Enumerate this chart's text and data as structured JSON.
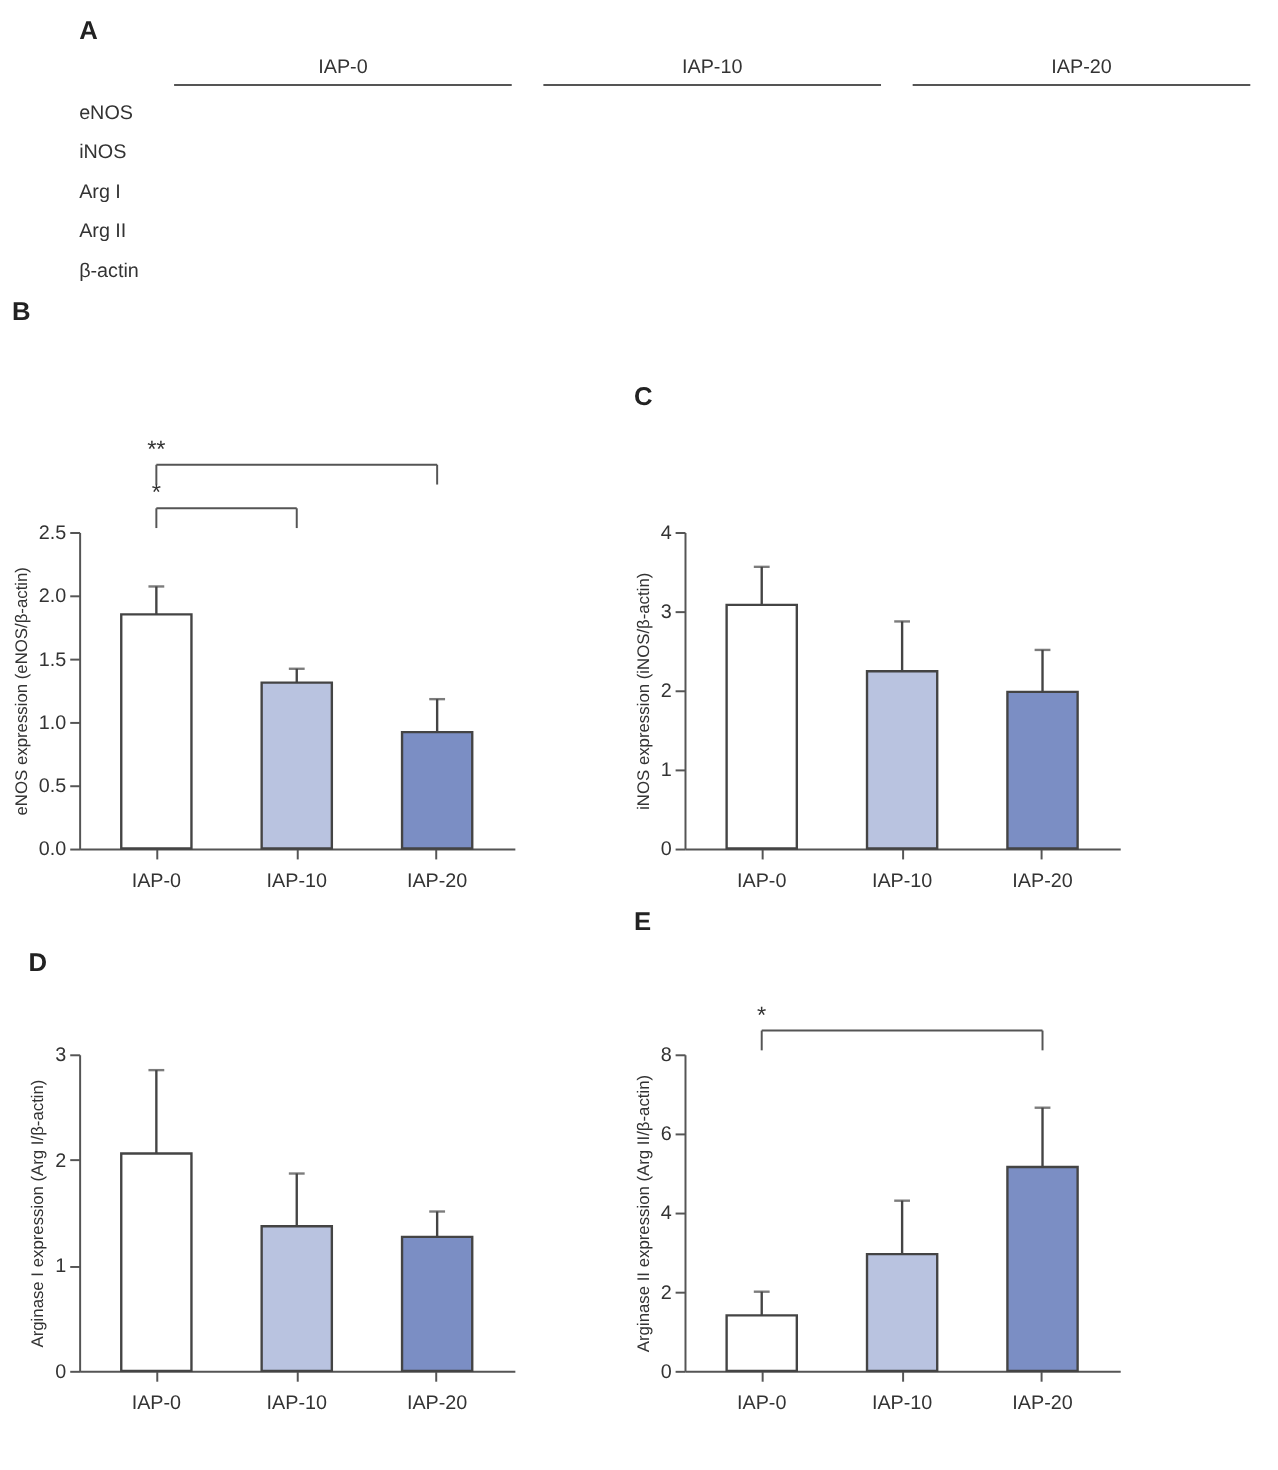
{
  "chart_data": [
    {
      "type": "other",
      "title": "A",
      "categories": [
        "IAP-0",
        "IAP-10",
        "IAP-20"
      ],
      "annotations": [
        "eNOS",
        "iNOS",
        "Arg I",
        "Arg II",
        "β-actin"
      ]
    },
    {
      "type": "bar",
      "title": "B",
      "categories": [
        "IAP-0",
        "IAP-10",
        "IAP-20"
      ],
      "values": [
        1.85,
        1.31,
        0.92
      ],
      "colors": [
        "#ffffff",
        "#b9c3e0",
        "#7b8ec4"
      ],
      "errors": [
        [
          1.85,
          2.07
        ],
        [
          1.31,
          1.42
        ],
        [
          0.92,
          1.18
        ]
      ],
      "ylabel": "eNOS expression (eNOS/β-actin)",
      "ylim": [
        0,
        2.5
      ],
      "yticks": [
        {
          "value": 0,
          "label": "0.0"
        },
        0.5,
        {
          "value": 1,
          "label": "1.0"
        },
        1.5,
        {
          "value": 2,
          "label": "2.0"
        },
        2.5
      ],
      "annotations": [
        "*",
        "**"
      ]
    },
    {
      "type": "bar",
      "title": "C",
      "categories": [
        "IAP-0",
        "IAP-10",
        "IAP-20"
      ],
      "values": [
        3.08,
        2.24,
        1.98
      ],
      "colors": [
        "#ffffff",
        "#b9c3e0",
        "#7b8ec4"
      ],
      "errors": [
        [
          3.08,
          3.56
        ],
        [
          2.24,
          2.87
        ],
        [
          1.98,
          2.51
        ]
      ],
      "ylabel": "iNOS expression (iNOS/β-actin)",
      "ylim": [
        0,
        4
      ],
      "yticks": [
        0,
        1,
        2,
        3,
        4
      ]
    },
    {
      "type": "bar",
      "title": "D",
      "categories": [
        "IAP-0",
        "IAP-10",
        "IAP-20"
      ],
      "values": [
        2.06,
        1.37,
        1.27
      ],
      "colors": [
        "#ffffff",
        "#b9c3e0",
        "#7b8ec4"
      ],
      "errors": [
        [
          2.06,
          2.85
        ],
        [
          1.37,
          1.87
        ],
        [
          1.27,
          1.51
        ]
      ],
      "ylabel": "Arginase I expression (Arg I/β-actin)",
      "ylim": [
        0,
        3
      ],
      "yticks": [
        0,
        1,
        2,
        3
      ]
    },
    {
      "type": "bar",
      "title": "E",
      "categories": [
        "IAP-0",
        "IAP-10",
        "IAP-20"
      ],
      "values": [
        1.4,
        2.95,
        5.15
      ],
      "colors": [
        "#ffffff",
        "#b9c3e0",
        "#7b8ec4"
      ],
      "errors": [
        [
          1.4,
          2.0
        ],
        [
          2.95,
          4.3
        ],
        [
          5.15,
          6.65
        ]
      ],
      "ylabel": "Arginase II expression (Arg II/β-actin)",
      "ylim": [
        0,
        8
      ],
      "yticks": [
        0,
        2,
        4,
        6,
        8
      ],
      "annotations": [
        "*"
      ]
    }
  ]
}
